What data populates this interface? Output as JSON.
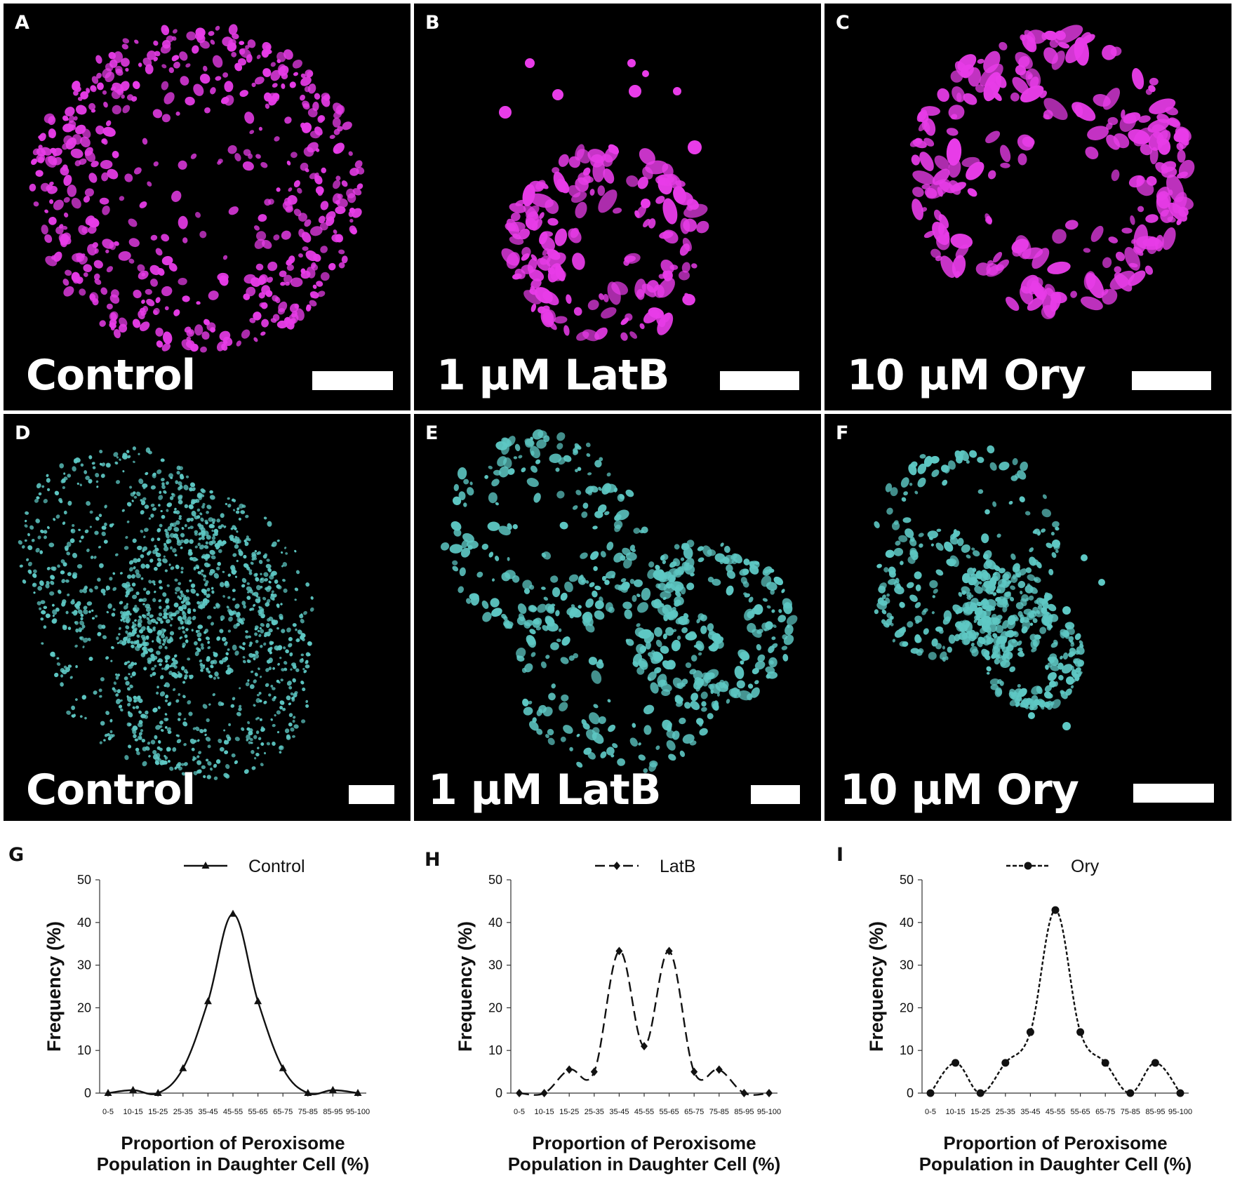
{
  "figure": {
    "panels": [
      {
        "letter": "A",
        "label": "Control",
        "stain": "magenta"
      },
      {
        "letter": "B",
        "label": "1 µM LatB",
        "stain": "magenta"
      },
      {
        "letter": "C",
        "label": "10 µM Ory",
        "stain": "magenta"
      },
      {
        "letter": "D",
        "label": "Control",
        "stain": "cyan"
      },
      {
        "letter": "E",
        "label": "1 µM LatB",
        "stain": "cyan"
      },
      {
        "letter": "F",
        "label": "10 µM Ory",
        "stain": "cyan"
      }
    ],
    "colors": {
      "magenta": "#e83ce8",
      "cyan": "#5ec8c4",
      "background": "#000000",
      "border": "#ffffff"
    }
  },
  "chart_data": [
    {
      "letter": "G",
      "type": "line",
      "marker": "triangle",
      "line_style": "solid",
      "categories": [
        "0-5",
        "10-15",
        "15-25",
        "25-35",
        "35-45",
        "45-55",
        "55-65",
        "65-75",
        "75-85",
        "85-95",
        "95-100"
      ],
      "series": [
        {
          "name": "Control",
          "values": [
            0,
            0.7,
            0,
            5.8,
            21.5,
            42,
            21.5,
            5.8,
            0,
            0.7,
            0
          ]
        }
      ],
      "xlabel": [
        "Proportion of Peroxisome",
        "Population in Daughter Cell (%)"
      ],
      "ylabel": "Frequency (%)",
      "ylim": [
        0,
        50
      ],
      "yticks": [
        "0",
        "10",
        "20",
        "30",
        "40",
        "50"
      ],
      "legend": "top-center",
      "grid": false
    },
    {
      "letter": "H",
      "type": "line",
      "marker": "diamond",
      "line_style": "dashed",
      "categories": [
        "0-5",
        "10-15",
        "15-25",
        "25-35",
        "35-45",
        "45-55",
        "55-65",
        "65-75",
        "75-85",
        "85-95",
        "95-100"
      ],
      "series": [
        {
          "name": "LatB",
          "values": [
            0,
            0,
            5.5,
            5,
            33.3,
            11,
            33.3,
            5,
            5.5,
            0,
            0
          ]
        }
      ],
      "xlabel": [
        "Proportion of Peroxisome",
        "Population in Daughter Cell (%)"
      ],
      "ylabel": "Frequency (%)",
      "ylim": [
        0,
        50
      ],
      "yticks": [
        "0",
        "10",
        "20",
        "30",
        "40",
        "50"
      ],
      "legend": "top-center",
      "grid": false
    },
    {
      "letter": "I",
      "type": "line",
      "marker": "circle",
      "line_style": "dotted",
      "categories": [
        "0-5",
        "10-15",
        "15-25",
        "25-35",
        "35-45",
        "45-55",
        "55-65",
        "65-75",
        "75-85",
        "85-95",
        "95-100"
      ],
      "series": [
        {
          "name": "Ory",
          "values": [
            0,
            7.1,
            0,
            7.1,
            14.3,
            42.9,
            14.3,
            7.1,
            0,
            7.1,
            0
          ]
        }
      ],
      "xlabel": [
        "Proportion of Peroxisome",
        "Population in Daughter Cell (%)"
      ],
      "ylabel": "Frequency (%)",
      "ylim": [
        0,
        50
      ],
      "yticks": [
        "0",
        "10",
        "20",
        "30",
        "40",
        "50"
      ],
      "legend": "top-center",
      "grid": false
    }
  ]
}
